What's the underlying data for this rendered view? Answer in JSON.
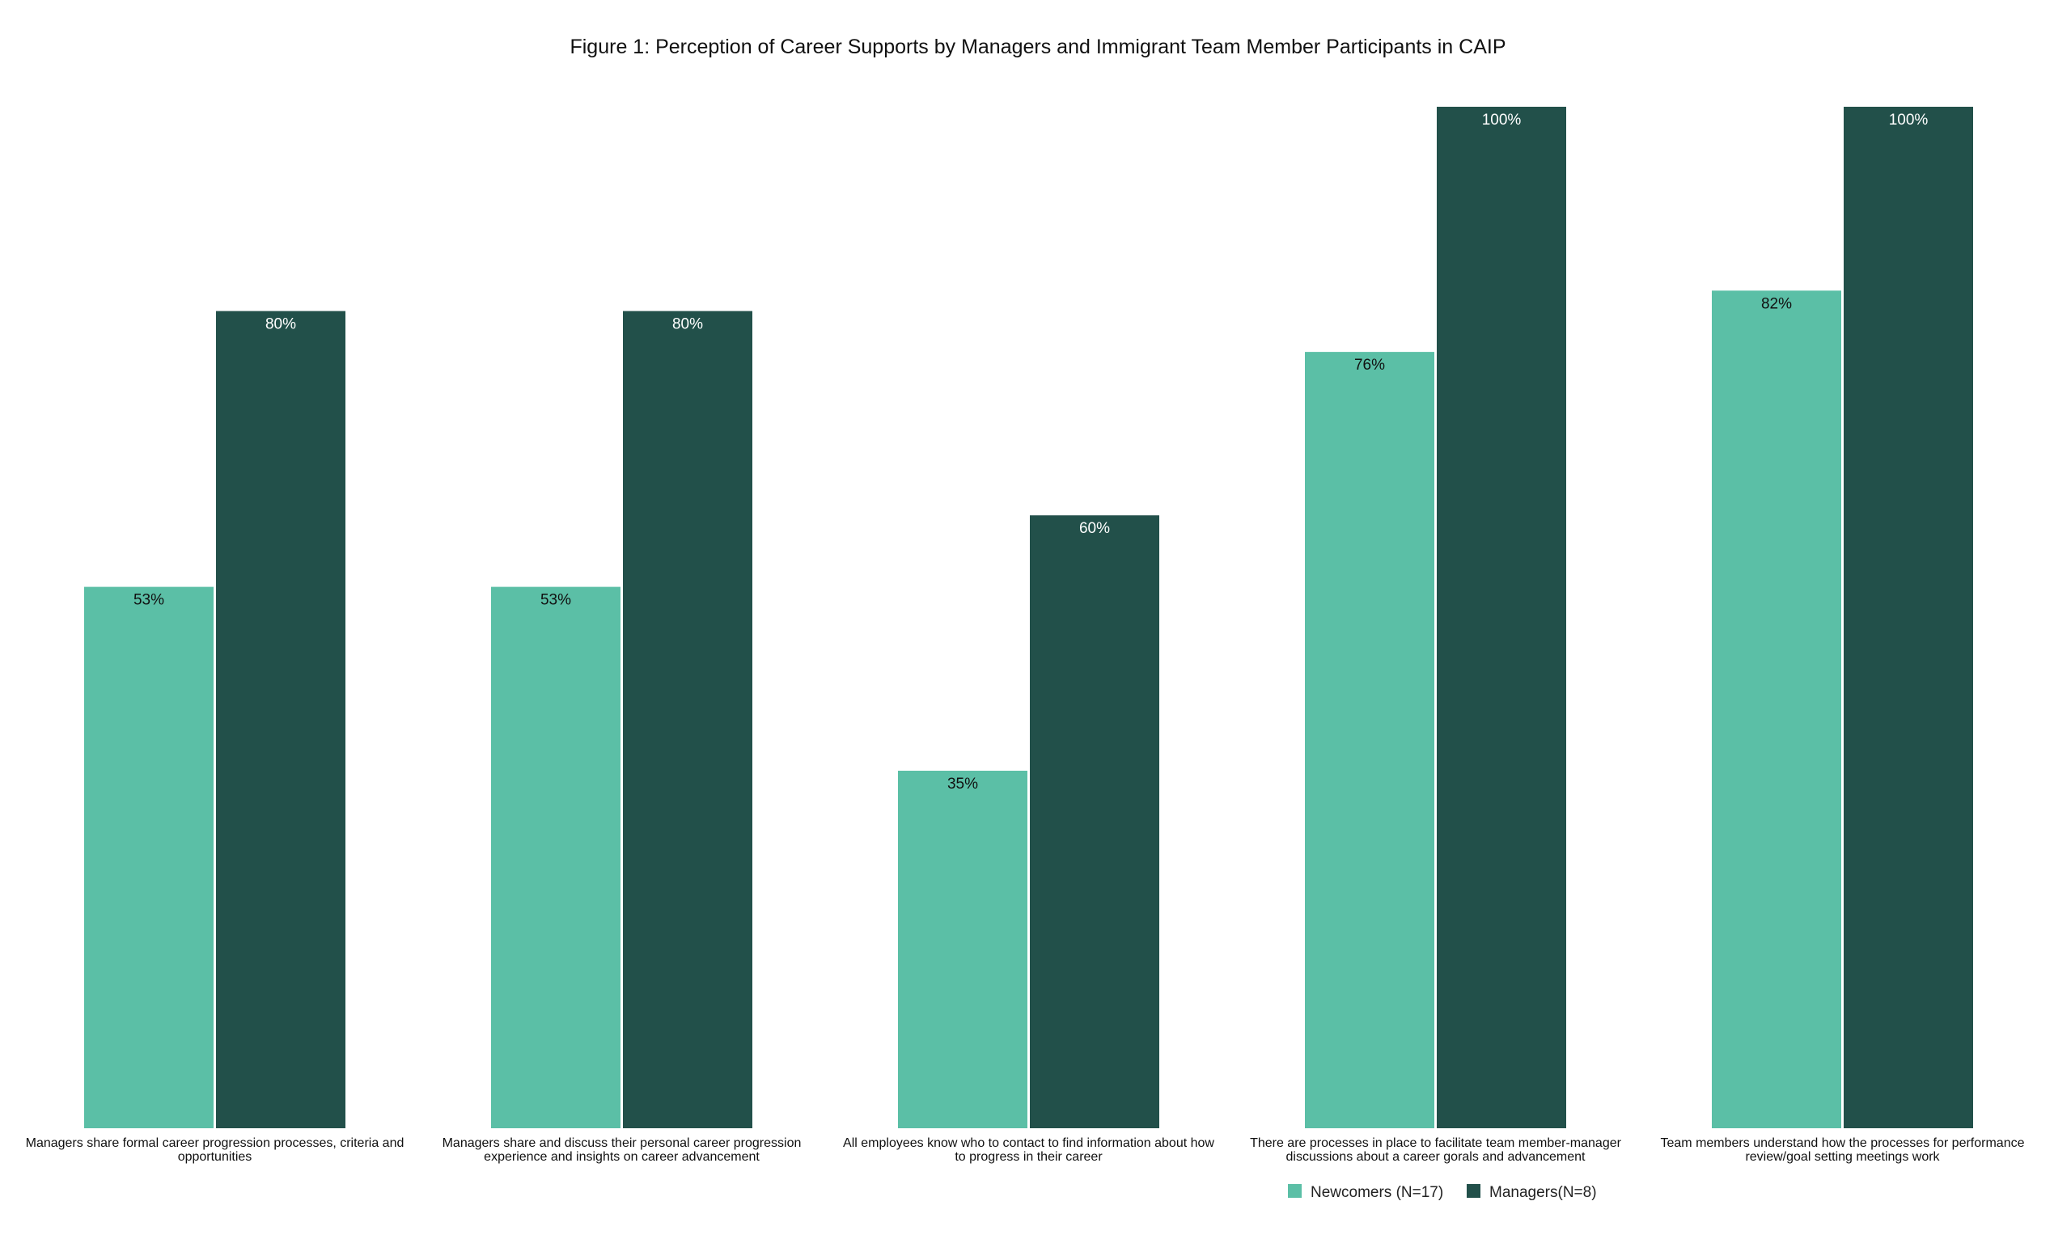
{
  "chart_data": {
    "type": "bar",
    "title": "Figure 1: Perception of Career Supports by Managers and Immigrant Team Member Participants in CAIP",
    "xlabel": "",
    "ylabel": "",
    "ylim": [
      0,
      100
    ],
    "grid": false,
    "legend_position": "bottom-right",
    "categories": [
      [
        "Managers share formal career progression processes, criteria and",
        "opportunities"
      ],
      [
        "Managers share and discuss their personal career progression",
        "experience and insights on career advancement"
      ],
      [
        "All employees know who to contact to find information about how",
        "to progress in their career"
      ],
      [
        "There are processes in place to facilitate team member-manager",
        "discussions about a career gorals and advancement"
      ],
      [
        "Team members understand how the processes for performance",
        "review/goal setting meetings work"
      ]
    ],
    "series": [
      {
        "name": "Newcomers (N=17)",
        "color": "#5bbfa6",
        "label_color": "#111111",
        "values": [
          53,
          53,
          35,
          76,
          82
        ],
        "labels": [
          "53%",
          "53%",
          "35%",
          "76%",
          "82%"
        ]
      },
      {
        "name": "Managers(N=8)",
        "color": "#22504a",
        "label_color": "#ffffff",
        "values": [
          80,
          80,
          60,
          100,
          100
        ],
        "labels": [
          "80%",
          "80%",
          "60%",
          "100%",
          "100%"
        ]
      }
    ]
  }
}
